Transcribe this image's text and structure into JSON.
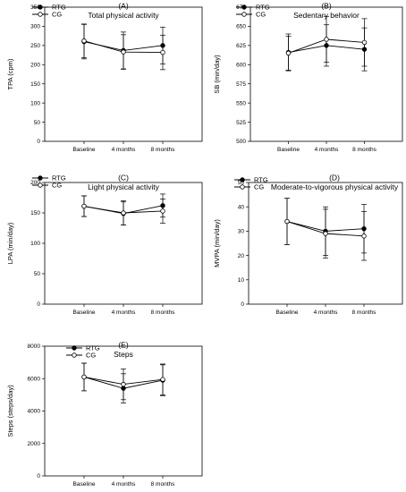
{
  "chart_data": [
    {
      "type": "line",
      "panel": "(A)",
      "title": "Total physical activity",
      "ylabel": "TPA (cpm)",
      "categories": [
        "Baseline",
        "4 months",
        "8 months"
      ],
      "ylim": [
        0,
        350
      ],
      "yticks": [
        0,
        50,
        100,
        150,
        200,
        250,
        300,
        350
      ],
      "series": [
        {
          "name": "RTG",
          "marker": "filled",
          "values": [
            260,
            237,
            250
          ],
          "err": [
            45,
            48,
            48
          ]
        },
        {
          "name": "CG",
          "marker": "open",
          "values": [
            262,
            233,
            232
          ],
          "err": [
            44,
            45,
            45
          ]
        }
      ]
    },
    {
      "type": "line",
      "panel": "(B)",
      "title": "Sedentary behavior",
      "ylabel": "SB (min/day)",
      "categories": [
        "Baseline",
        "4 months",
        "8 months"
      ],
      "ylim": [
        500,
        675
      ],
      "yticks": [
        500,
        525,
        550,
        575,
        600,
        625,
        650,
        675
      ],
      "series": [
        {
          "name": "RTG",
          "marker": "filled",
          "values": [
            616,
            625,
            620
          ],
          "err": [
            24,
            27,
            28
          ]
        },
        {
          "name": "CG",
          "marker": "open",
          "values": [
            615,
            633,
            629
          ],
          "err": [
            22,
            30,
            31
          ]
        }
      ]
    },
    {
      "type": "line",
      "panel": "(C)",
      "title": "Light physical activity",
      "ylabel": "LPA (min/day)",
      "categories": [
        "Baseline",
        "4 months",
        "8 months"
      ],
      "ylim": [
        0,
        200
      ],
      "yticks": [
        0,
        50,
        100,
        150,
        200
      ],
      "series": [
        {
          "name": "RTG",
          "marker": "filled",
          "values": [
            161,
            149,
            162
          ],
          "err": [
            17,
            19,
            19
          ]
        },
        {
          "name": "CG",
          "marker": "open",
          "values": [
            161,
            150,
            153
          ],
          "err": [
            17,
            20,
            20
          ]
        }
      ]
    },
    {
      "type": "line",
      "panel": "(D)",
      "title": "Moderate-to-vigorous physical activity",
      "ylabel": "MVPA (min/day)",
      "categories": [
        "Baseline",
        "4 months",
        "8 months"
      ],
      "ylim": [
        0,
        50
      ],
      "yticks": [
        0,
        10,
        20,
        30,
        40,
        50
      ],
      "series": [
        {
          "name": "RTG",
          "marker": "filled",
          "values": [
            34,
            30,
            31
          ],
          "err": [
            9.5,
            10,
            10
          ]
        },
        {
          "name": "CG",
          "marker": "open",
          "values": [
            34,
            29,
            28
          ],
          "err": [
            9.5,
            10,
            10
          ]
        }
      ]
    },
    {
      "type": "line",
      "panel": "(E)",
      "title": "Steps",
      "ylabel": "Steps (steps/day)",
      "categories": [
        "Baseline",
        "4 months",
        "8 months"
      ],
      "ylim": [
        0,
        8000
      ],
      "yticks": [
        0,
        2000,
        4000,
        6000,
        8000
      ],
      "series": [
        {
          "name": "RTG",
          "marker": "filled",
          "values": [
            6100,
            5400,
            5900
          ],
          "err": [
            850,
            900,
            950
          ]
        },
        {
          "name": "CG",
          "marker": "open",
          "values": [
            6100,
            5650,
            5950
          ],
          "err": [
            850,
            950,
            950
          ]
        }
      ]
    }
  ]
}
